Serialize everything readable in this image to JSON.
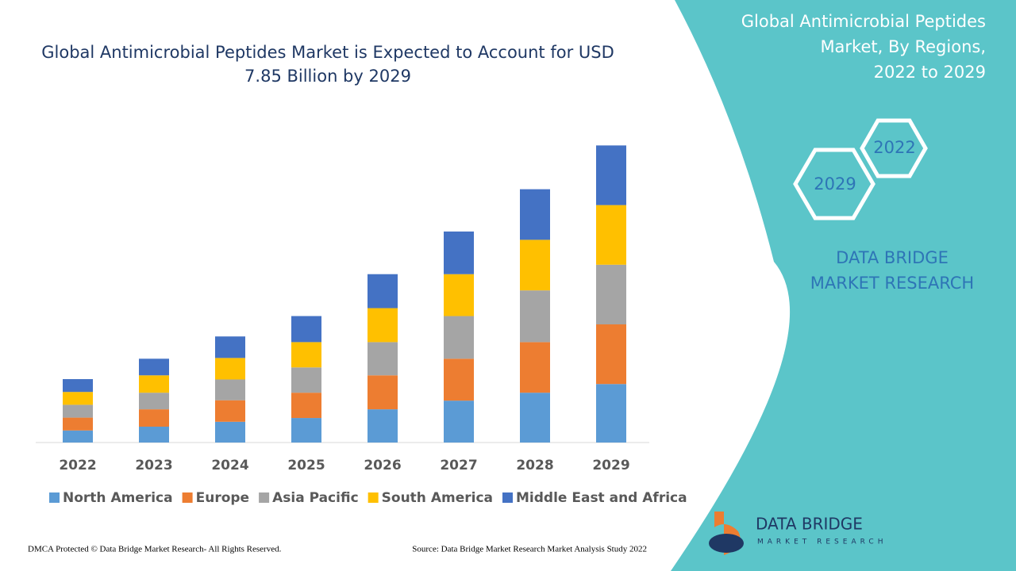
{
  "chart_data": {
    "type": "stacked-bar",
    "title": "Global Antimicrobial Peptides Market is Expected to Account for USD 7.85 Billion by 2029",
    "categories": [
      "2022",
      "2023",
      "2024",
      "2025",
      "2026",
      "2027",
      "2028",
      "2029"
    ],
    "series": [
      {
        "name": "North America",
        "color": "#5b9bd5",
        "values": [
          0.32,
          0.42,
          0.55,
          0.65,
          0.88,
          1.11,
          1.32,
          1.55
        ]
      },
      {
        "name": "Europe",
        "color": "#ed7d31",
        "values": [
          0.34,
          0.46,
          0.57,
          0.67,
          0.9,
          1.11,
          1.34,
          1.58
        ]
      },
      {
        "name": "Asia Pacific",
        "color": "#a5a5a5",
        "values": [
          0.34,
          0.44,
          0.55,
          0.67,
          0.88,
          1.13,
          1.37,
          1.58
        ]
      },
      {
        "name": "South America",
        "color": "#ffc000",
        "values": [
          0.34,
          0.46,
          0.57,
          0.67,
          0.9,
          1.11,
          1.34,
          1.58
        ]
      },
      {
        "name": "Middle East and Africa",
        "color": "#4472c4",
        "values": [
          0.34,
          0.44,
          0.57,
          0.69,
          0.9,
          1.13,
          1.34,
          1.58
        ]
      }
    ]
  },
  "panel": {
    "title": "Global Antimicrobial Peptides Market, By Regions, 2022 to 2029",
    "hex_top": "2022",
    "hex_bottom": "2029",
    "brand": "DATA BRIDGE MARKET RESEARCH",
    "logo_name": "DATA BRIDGE",
    "logo_sub": "MARKET RESEARCH"
  },
  "footer": {
    "left": "DMCA Protected © Data Bridge Market Research- All Rights Reserved.",
    "right": "Source: Data Bridge Market Research Market Analysis Study 2022"
  }
}
